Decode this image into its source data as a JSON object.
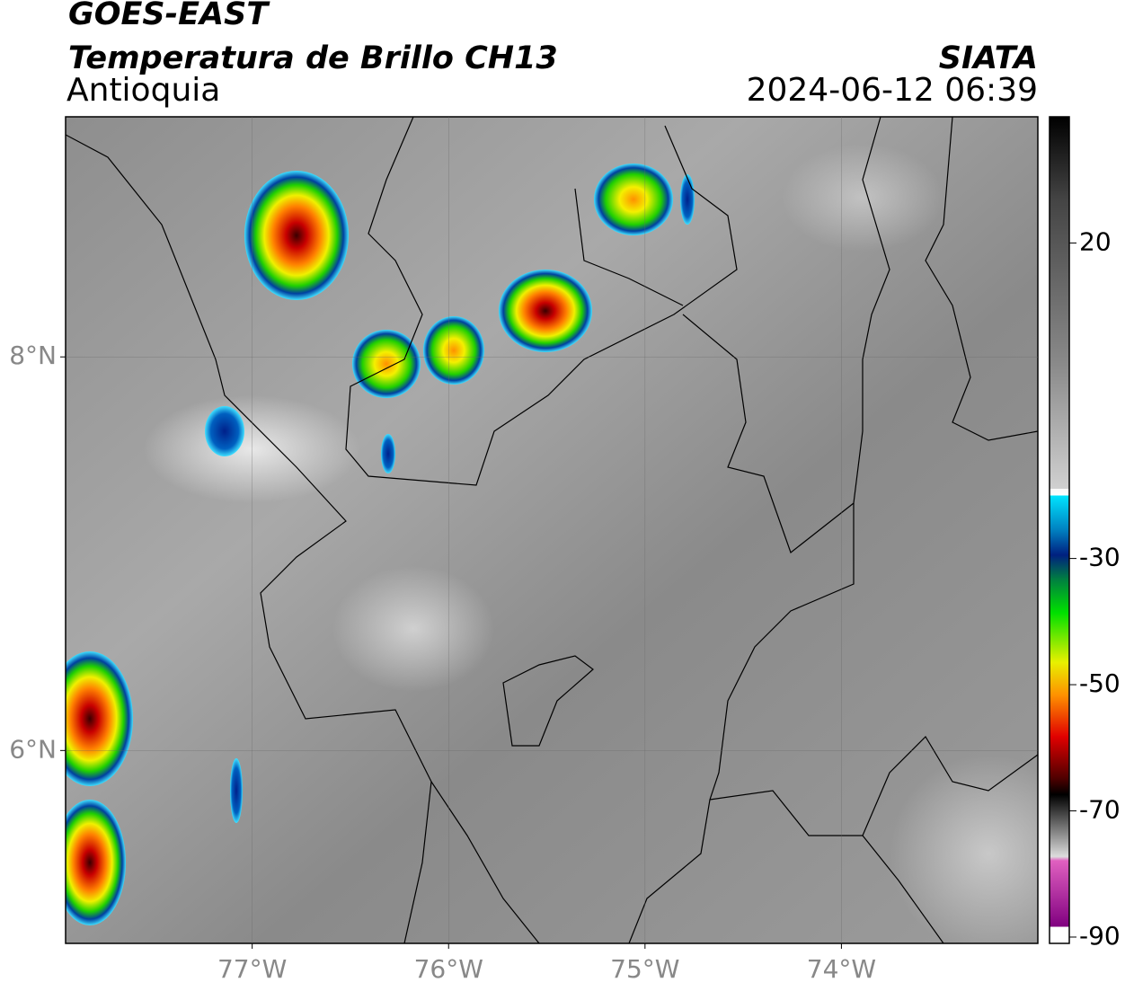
{
  "header": {
    "title": "GOES-EAST",
    "subtitle": "Temperatura de Brillo CH13",
    "region": "Antioquia",
    "source": "SIATA",
    "datetime": "2024-06-12 06:39"
  },
  "map": {
    "xlim": [
      -77.95,
      -73
    ],
    "ylim": [
      5.02,
      9.22
    ],
    "xticks": [
      {
        "value": -77,
        "label": "77°W"
      },
      {
        "value": -76,
        "label": "76°W"
      },
      {
        "value": -75,
        "label": "75°W"
      },
      {
        "value": -74,
        "label": "74°W"
      }
    ],
    "yticks": [
      {
        "value": 6,
        "label": "6°N"
      },
      {
        "value": 8,
        "label": "8°N"
      }
    ],
    "grid": true
  },
  "colorbar": {
    "lim": [
      -91,
      40
    ],
    "ticks": [
      20,
      -30,
      -50,
      -70,
      -90
    ]
  }
}
